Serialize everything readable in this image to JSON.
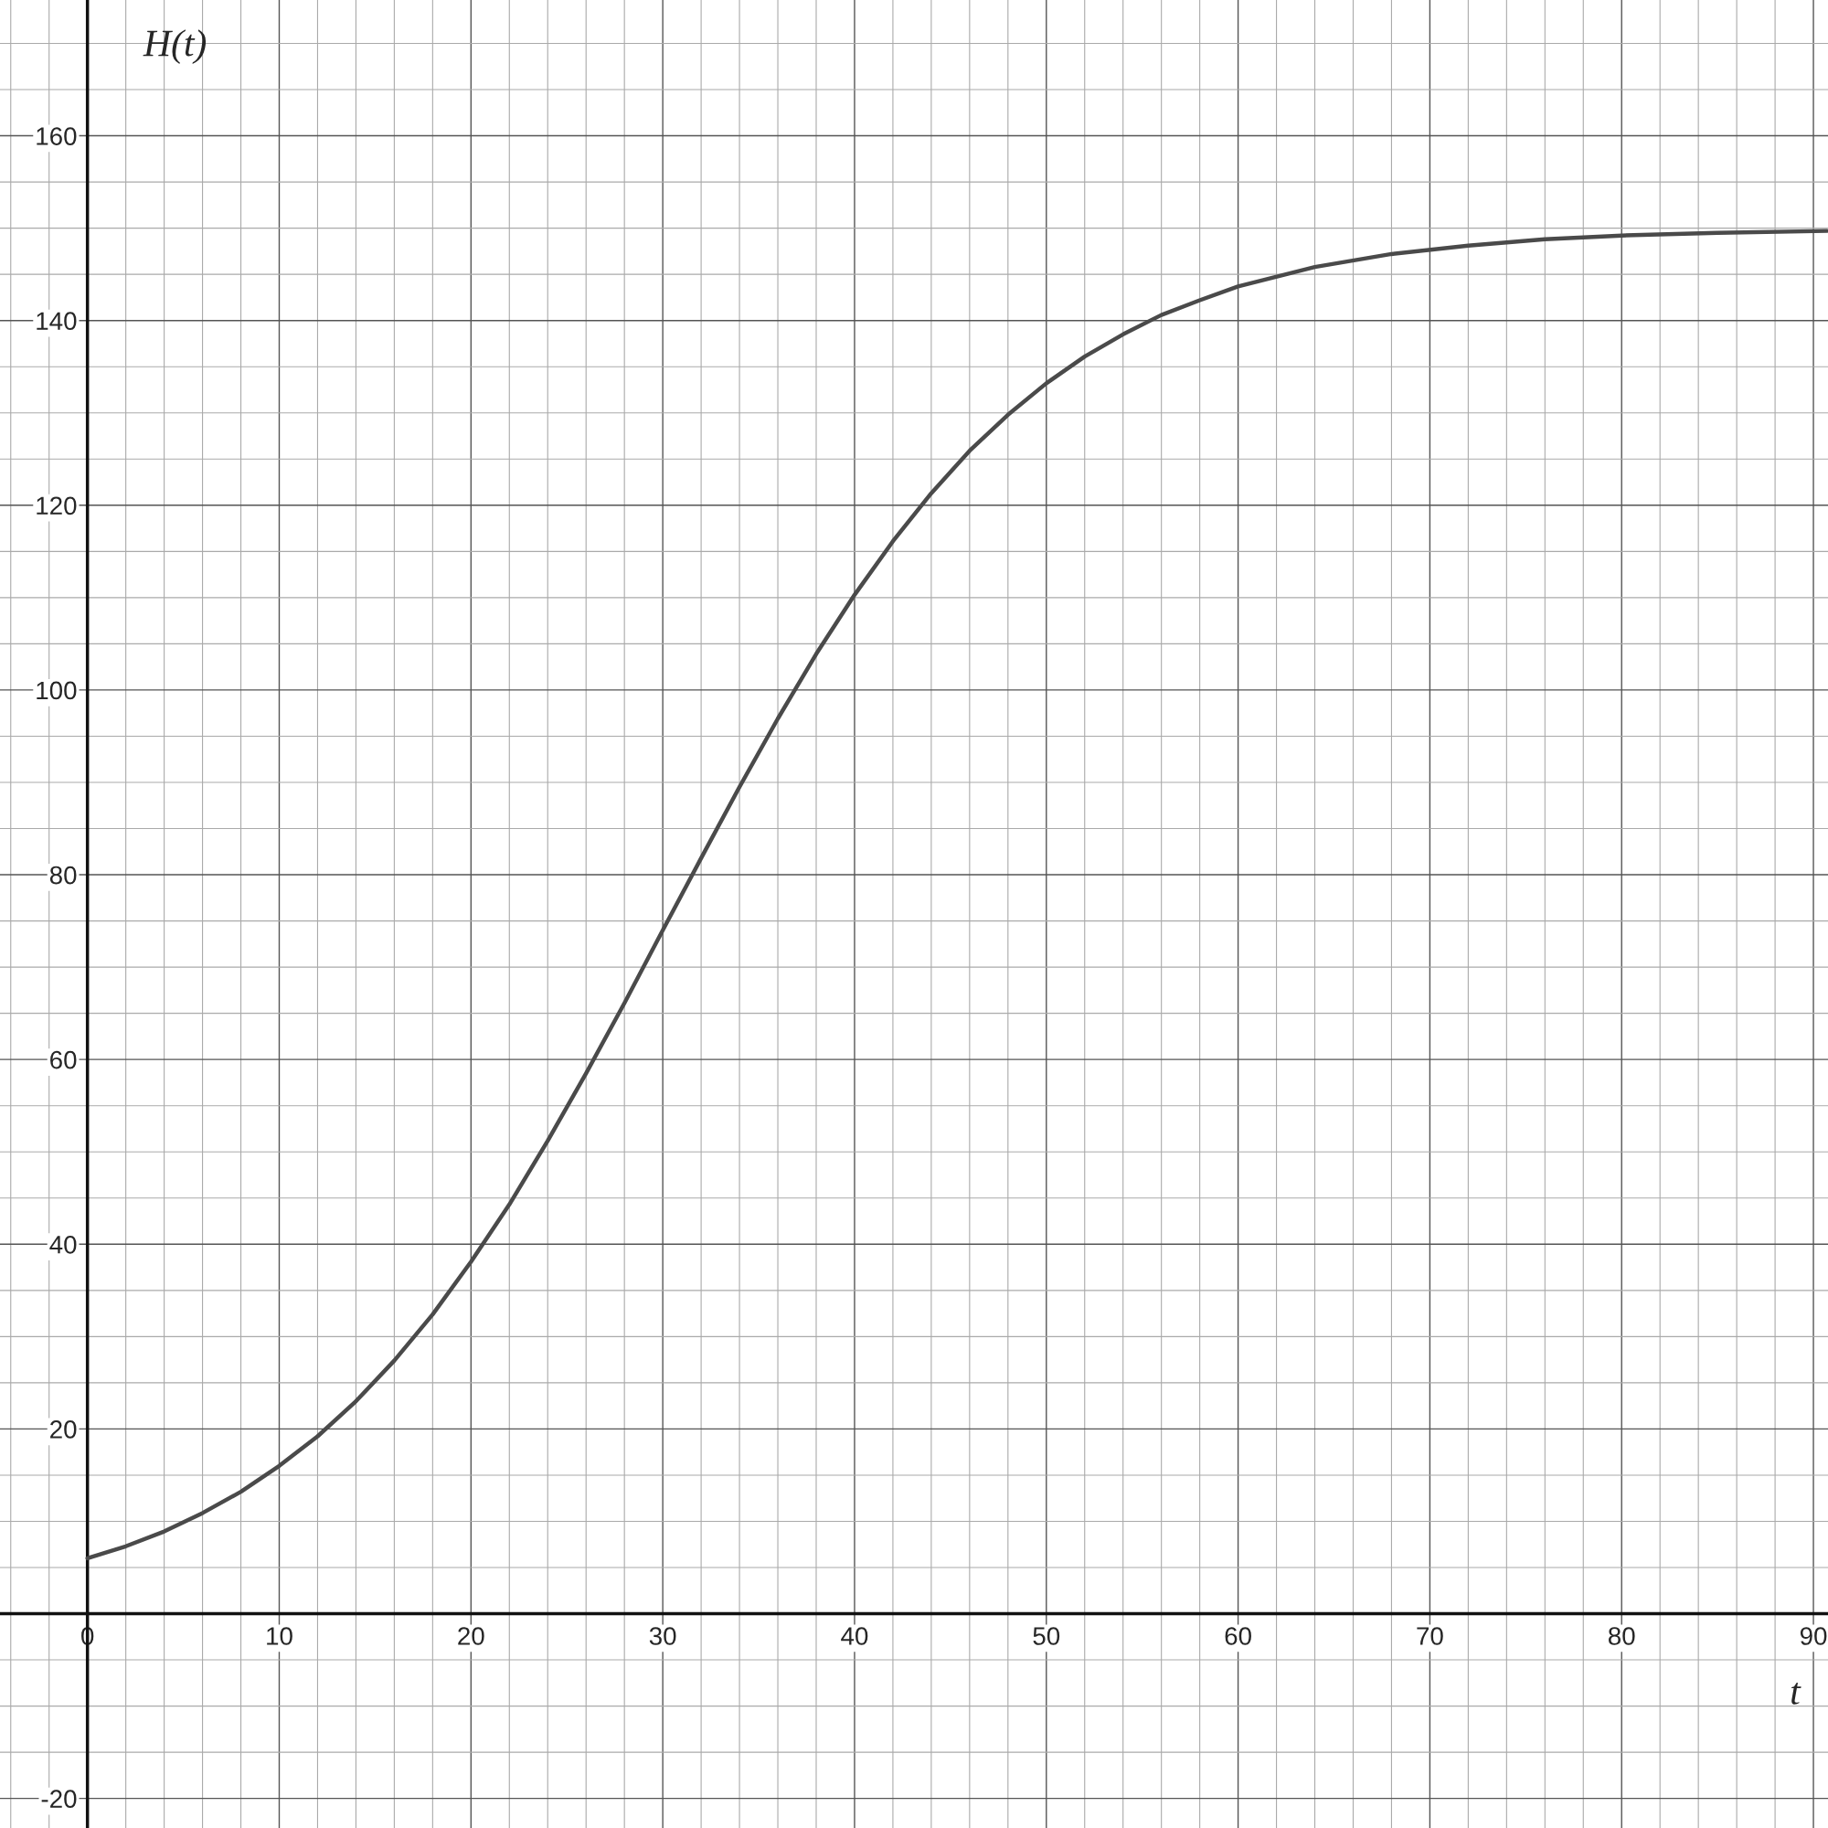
{
  "chart_data": {
    "type": "line",
    "xlabel": "t",
    "ylabel": "H(t)",
    "x": [
      0,
      2,
      4,
      6,
      8,
      10,
      12,
      14,
      16,
      18,
      20,
      22,
      24,
      26,
      28,
      30,
      32,
      34,
      36,
      38,
      40,
      42,
      44,
      46,
      48,
      50,
      52,
      54,
      56,
      58,
      60,
      64,
      68,
      72,
      76,
      80,
      85,
      90.7
    ],
    "series": [
      {
        "color": "#4a4a4a",
        "values": [
          6.0,
          7.3,
          8.9,
          10.9,
          13.2,
          16.0,
          19.2,
          23.0,
          27.4,
          32.4,
          38.1,
          44.3,
          51.2,
          58.5,
          66.1,
          74.0,
          81.8,
          89.5,
          96.9,
          103.9,
          110.3,
          116.1,
          121.3,
          125.9,
          129.8,
          133.2,
          136.1,
          138.5,
          140.6,
          142.2,
          143.7,
          145.8,
          147.2,
          148.1,
          148.8,
          149.2,
          149.5,
          149.7
        ]
      }
    ],
    "xlim": [
      -4.56,
      90.76
    ],
    "ylim": [
      -23.2,
      174.7
    ],
    "xticks": [
      0,
      10,
      20,
      30,
      40,
      50,
      60,
      70,
      80,
      90
    ],
    "yticks": [
      {
        "value": -20,
        "label": "-20"
      },
      20,
      40,
      60,
      80,
      100,
      120,
      140,
      160
    ],
    "grid": true,
    "marker": "none",
    "line_style": "solid",
    "legend": false
  }
}
